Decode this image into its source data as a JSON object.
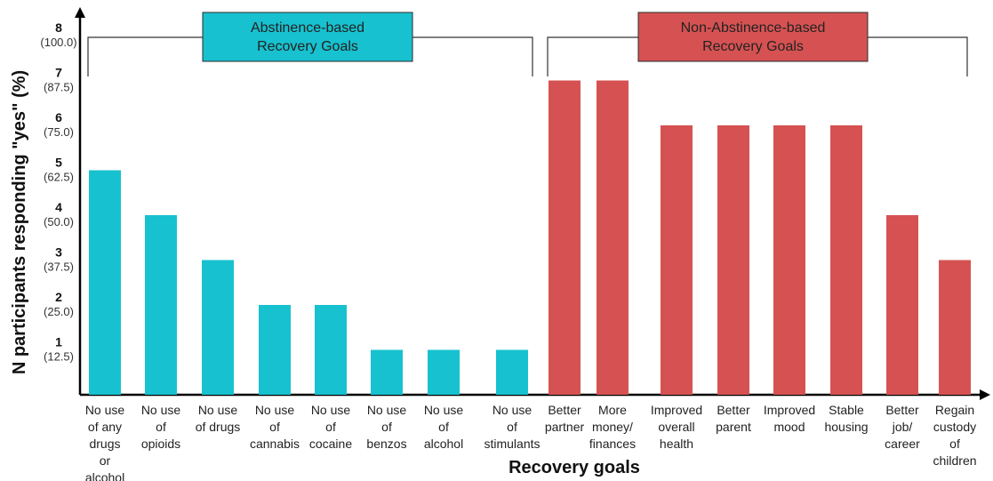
{
  "chart_data": {
    "type": "bar",
    "xlabel": "Recovery goals",
    "ylabel": "N participants responding \"yes\" (%)",
    "ylim": [
      0,
      8
    ],
    "y_ticks": [
      {
        "count": "1",
        "pct": "(12.5)"
      },
      {
        "count": "2",
        "pct": "(25.0)"
      },
      {
        "count": "3",
        "pct": "(37.5)"
      },
      {
        "count": "4",
        "pct": "(50.0)"
      },
      {
        "count": "5",
        "pct": "(62.5)"
      },
      {
        "count": "6",
        "pct": "(75.0)"
      },
      {
        "count": "7",
        "pct": "(87.5)"
      },
      {
        "count": "8",
        "pct": "(100.0)"
      }
    ],
    "categories": [
      "No use of any drugs or alcohol",
      "No use of opioids",
      "No use of drugs",
      "No use of cannabis",
      "No use of cocaine",
      "No use of benzos",
      "No use of alcohol",
      "No use of stimulants",
      "Better partner",
      "More money/ finances",
      "Improved overall health",
      "Better parent",
      "Improved mood",
      "Stable housing",
      "Better job/ career",
      "Regain custody of children"
    ],
    "category_lines": [
      [
        "No use",
        "of any",
        "drugs",
        "or",
        "alcohol"
      ],
      [
        "No use",
        "of",
        "opioids"
      ],
      [
        "No use",
        "of drugs"
      ],
      [
        "No use",
        "of",
        "cannabis"
      ],
      [
        "No use",
        "of",
        "cocaine"
      ],
      [
        "No use",
        "of",
        "benzos"
      ],
      [
        "No use",
        "of",
        "alcohol"
      ],
      [
        "No use",
        "of",
        "stimulants"
      ],
      [
        "Better",
        "partner"
      ],
      [
        "More",
        "money/",
        "finances"
      ],
      [
        "Improved",
        "overall",
        "health"
      ],
      [
        "Better",
        "parent"
      ],
      [
        "Improved",
        "mood"
      ],
      [
        "Stable",
        "housing"
      ],
      [
        "Better",
        "job/",
        "career"
      ],
      [
        "Regain",
        "custody",
        "of",
        "children"
      ]
    ],
    "values": [
      5,
      4,
      3,
      2,
      2,
      1,
      1,
      1,
      7,
      7,
      6,
      6,
      6,
      6,
      4,
      3
    ],
    "groups": [
      {
        "label_lines": [
          "Abstinence-based",
          "Recovery Goals"
        ],
        "color": "#17c1cf",
        "first": 0,
        "last": 7
      },
      {
        "label_lines": [
          "Non-Abstinence-based",
          "Recovery Goals"
        ],
        "color": "#d65252",
        "first": 8,
        "last": 15
      }
    ],
    "grid": false,
    "legend": "none"
  }
}
